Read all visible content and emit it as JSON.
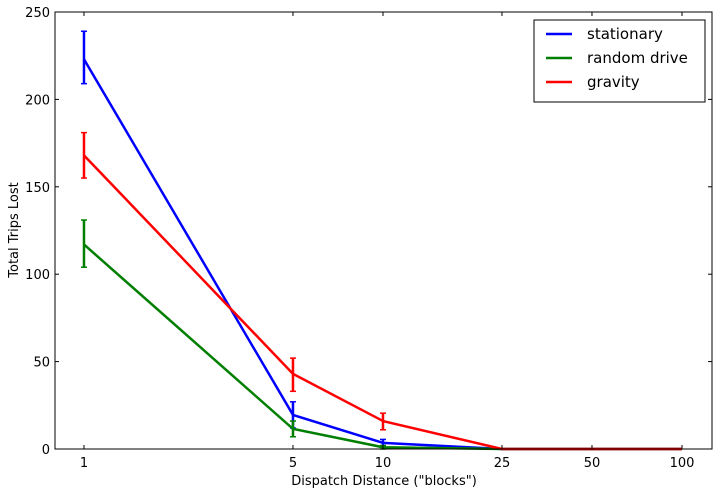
{
  "chart_data": {
    "type": "line",
    "title": "",
    "xlabel": "Dispatch Distance (\"blocks\")",
    "ylabel": "Total Trips Lost",
    "xscale": "log",
    "x": [
      1,
      5,
      10,
      25,
      50,
      100
    ],
    "xticks": [
      "1",
      "5",
      "10",
      "25",
      "50",
      "100"
    ],
    "xlim": [
      0.8,
      126
    ],
    "ylim": [
      0,
      250
    ],
    "yticks": [
      "0",
      "50",
      "100",
      "150",
      "200",
      "250"
    ],
    "ytick_values": [
      0,
      50,
      100,
      150,
      200,
      250
    ],
    "grid": false,
    "legend_position": "top-right",
    "series": [
      {
        "name": "stationary",
        "color": "#0000ff",
        "values": [
          223,
          19.5,
          3.5,
          0,
          0,
          0
        ],
        "err_low": [
          209,
          12,
          1.5,
          0,
          0,
          0
        ],
        "err_high": [
          239,
          27,
          5.5,
          0,
          0,
          0
        ]
      },
      {
        "name": "random drive",
        "color": "#007f00",
        "values": [
          117,
          11.5,
          1,
          0,
          0,
          0
        ],
        "err_low": [
          104,
          7,
          0,
          0,
          0,
          0
        ],
        "err_high": [
          131,
          16,
          2,
          0,
          0,
          0
        ]
      },
      {
        "name": "gravity",
        "color": "#ff0000",
        "values": [
          168,
          43,
          16,
          0,
          0,
          0
        ],
        "err_low": [
          155,
          33,
          11,
          0,
          0,
          0
        ],
        "err_high": [
          181,
          52,
          20.5,
          0,
          0,
          0
        ]
      }
    ]
  }
}
